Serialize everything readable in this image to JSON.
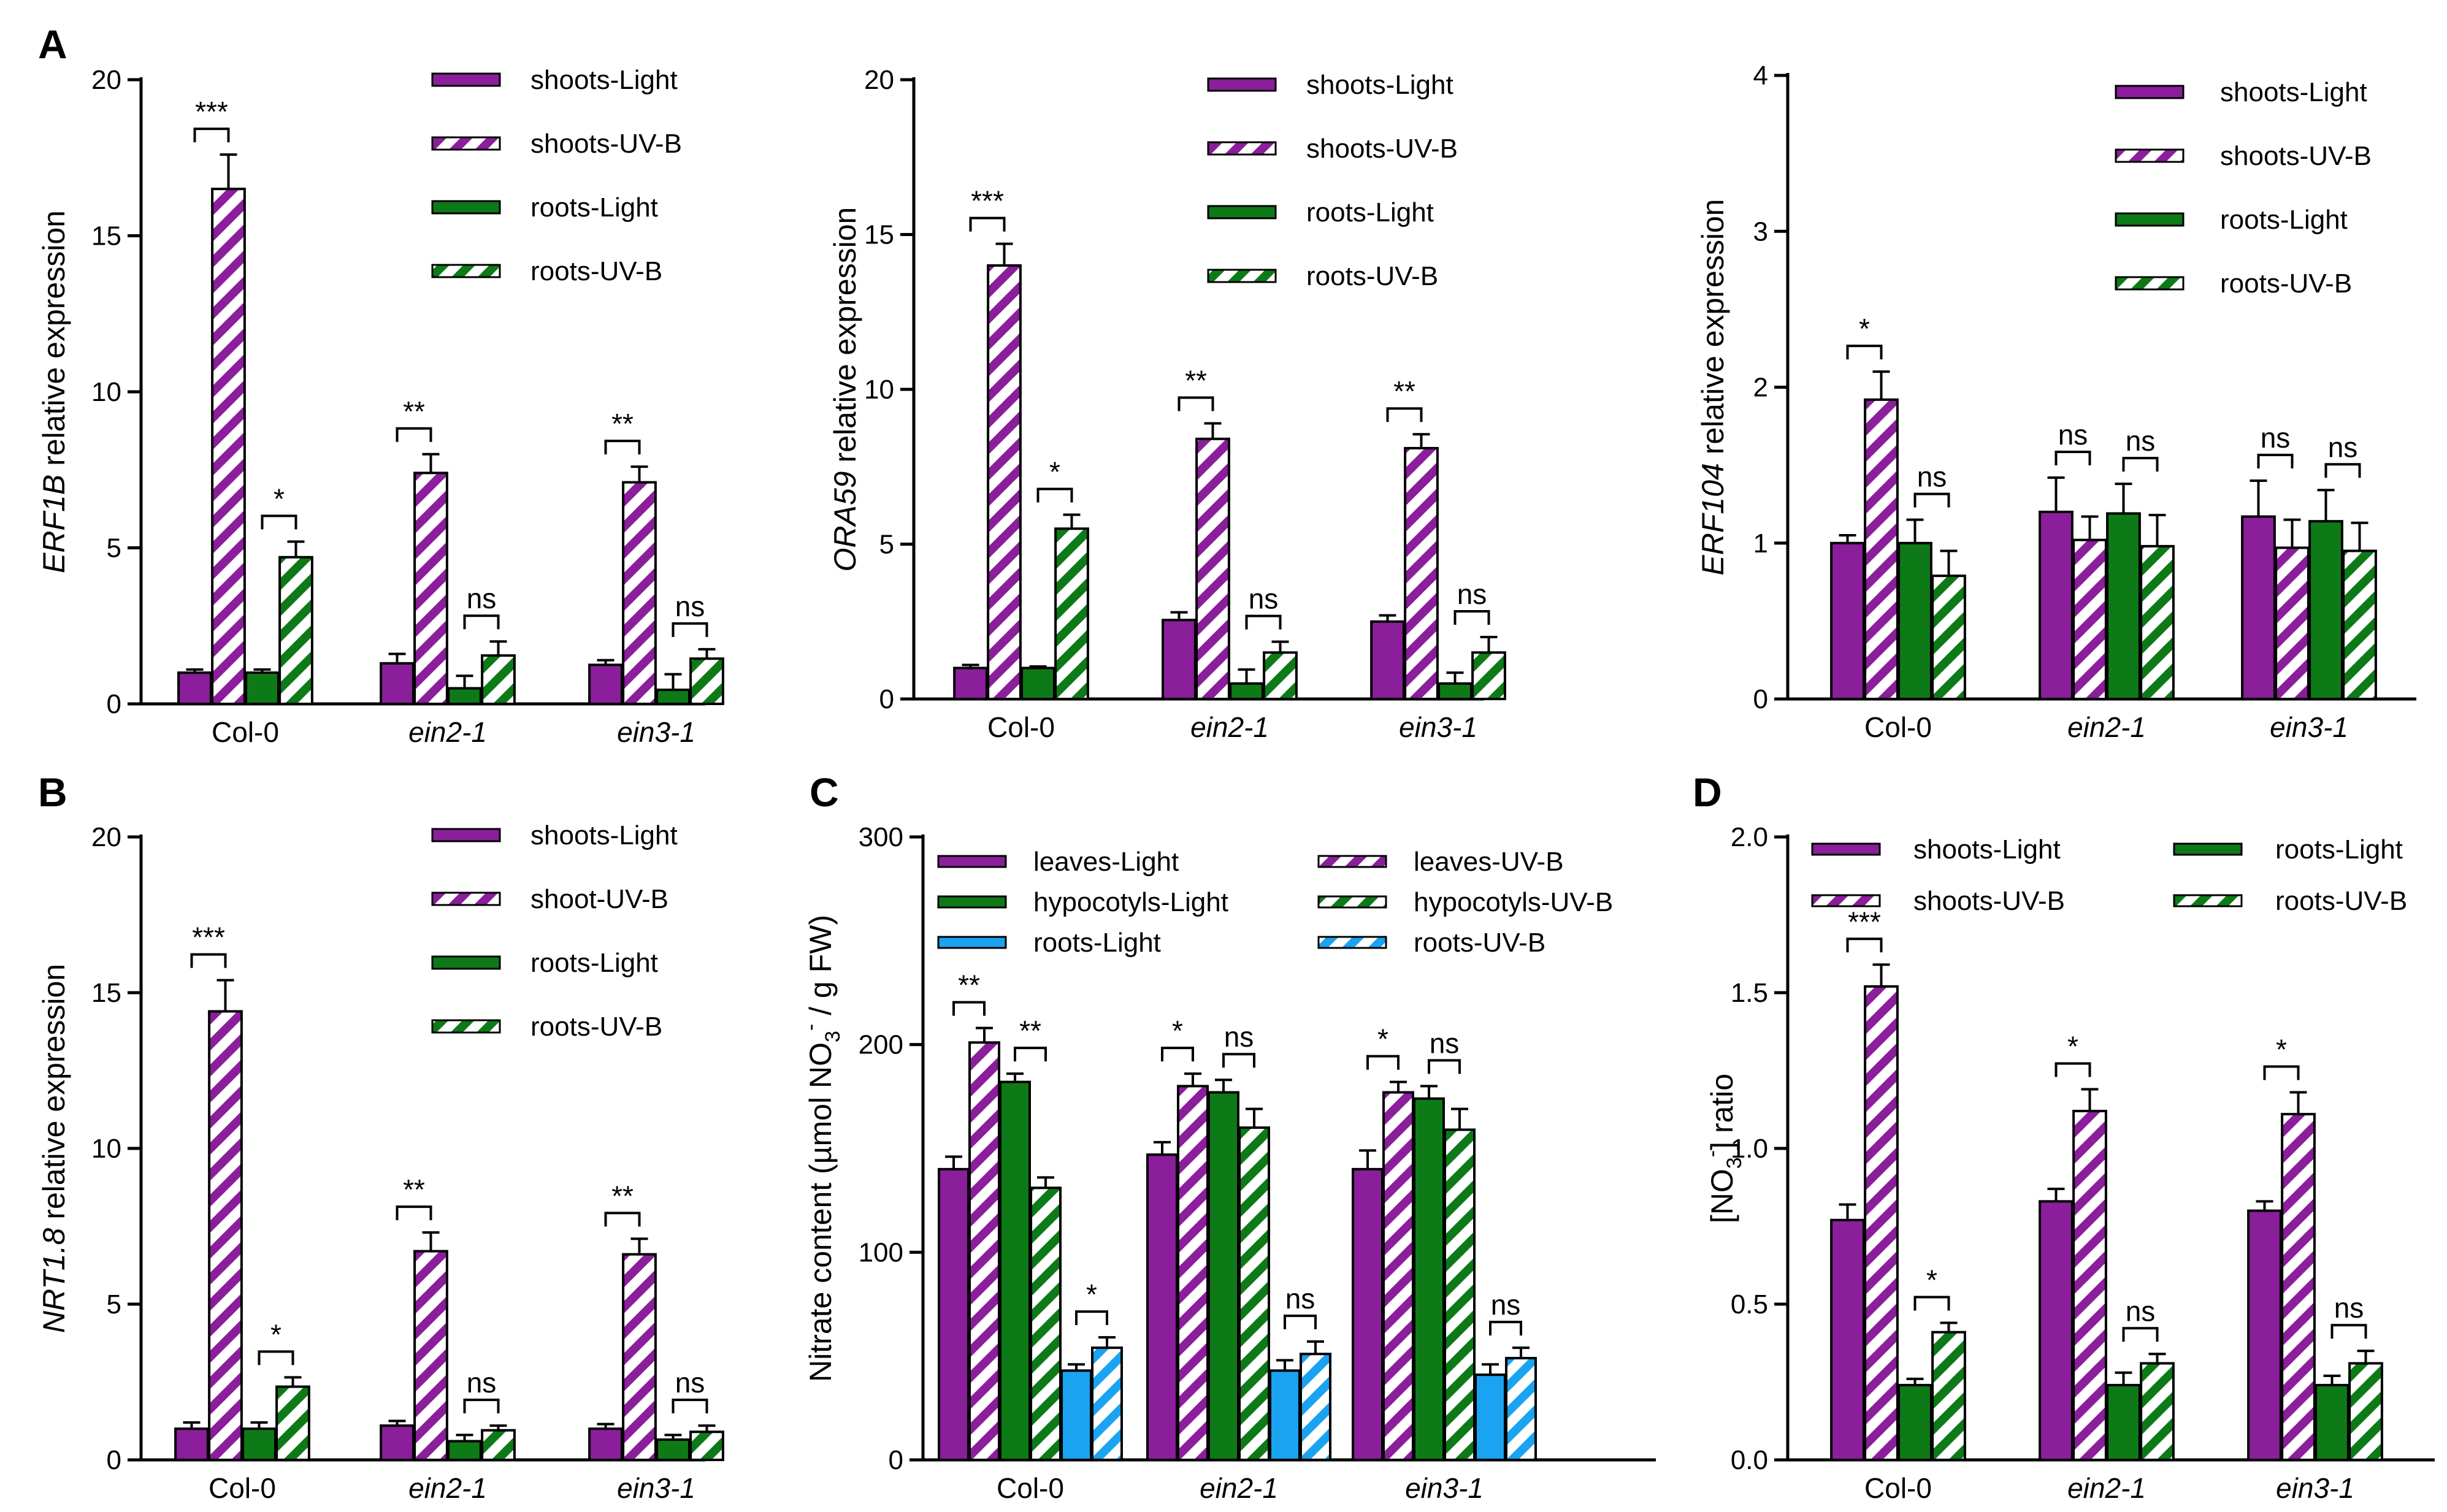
{
  "colors": {
    "purple": "#8B1E9B",
    "green": "#0D7A17",
    "blue": "#1AA3F0"
  },
  "chart_data": [
    {
      "id": "A1",
      "panel_label": "A",
      "type": "bar",
      "ylabel_italic": "ERF1B",
      "ylabel_rest": " relative expression",
      "ylim": [
        0,
        20
      ],
      "yticks": [
        "0",
        "5",
        "10",
        "15",
        "20"
      ],
      "categories": [
        {
          "label": "Col-0",
          "italic": false
        },
        {
          "label": "ein2-1",
          "italic": true
        },
        {
          "label": "ein3-1",
          "italic": true
        }
      ],
      "series": [
        {
          "name": "shoots-Light",
          "color": "purple",
          "hatch": false,
          "values": [
            1.0,
            1.3,
            1.25
          ],
          "errors": [
            0.1,
            0.3,
            0.15
          ]
        },
        {
          "name": "shoots-UV-B",
          "color": "purple",
          "hatch": true,
          "values": [
            16.5,
            7.4,
            7.1
          ],
          "errors": [
            1.1,
            0.6,
            0.5
          ]
        },
        {
          "name": "roots-Light",
          "color": "green",
          "hatch": false,
          "values": [
            1.0,
            0.5,
            0.45
          ],
          "errors": [
            0.1,
            0.4,
            0.5
          ]
        },
        {
          "name": "roots-UV-B",
          "color": "green",
          "hatch": true,
          "values": [
            4.7,
            1.55,
            1.45
          ],
          "errors": [
            0.5,
            0.45,
            0.3
          ]
        }
      ],
      "significance": [
        {
          "category": 0,
          "pair": [
            0,
            1
          ],
          "label": "***"
        },
        {
          "category": 0,
          "pair": [
            2,
            3
          ],
          "label": "*"
        },
        {
          "category": 1,
          "pair": [
            0,
            1
          ],
          "label": "**"
        },
        {
          "category": 1,
          "pair": [
            2,
            3
          ],
          "label": "ns"
        },
        {
          "category": 2,
          "pair": [
            0,
            1
          ],
          "label": "**"
        },
        {
          "category": 2,
          "pair": [
            2,
            3
          ],
          "label": "ns"
        }
      ],
      "legend": {
        "placement": "top-right",
        "columns": 1
      }
    },
    {
      "id": "A2",
      "panel_label": "",
      "type": "bar",
      "ylabel_italic": "ORA59",
      "ylabel_rest": " relative expression",
      "ylim": [
        0,
        20
      ],
      "yticks": [
        "0",
        "5",
        "10",
        "15",
        "20"
      ],
      "categories": [
        {
          "label": "Col-0",
          "italic": false
        },
        {
          "label": "ein2-1",
          "italic": true
        },
        {
          "label": "ein3-1",
          "italic": true
        }
      ],
      "series": [
        {
          "name": "shoots-Light",
          "color": "purple",
          "hatch": false,
          "values": [
            1.0,
            2.55,
            2.5
          ],
          "errors": [
            0.1,
            0.25,
            0.2
          ]
        },
        {
          "name": "shoots-UV-B",
          "color": "purple",
          "hatch": true,
          "values": [
            14.0,
            8.4,
            8.1
          ],
          "errors": [
            0.7,
            0.5,
            0.45
          ]
        },
        {
          "name": "roots-Light",
          "color": "green",
          "hatch": false,
          "values": [
            1.0,
            0.5,
            0.5
          ],
          "errors": [
            0.05,
            0.45,
            0.35
          ]
        },
        {
          "name": "roots-UV-B",
          "color": "green",
          "hatch": true,
          "values": [
            5.5,
            1.5,
            1.5
          ],
          "errors": [
            0.45,
            0.35,
            0.5
          ]
        }
      ],
      "significance": [
        {
          "category": 0,
          "pair": [
            0,
            1
          ],
          "label": "***"
        },
        {
          "category": 0,
          "pair": [
            2,
            3
          ],
          "label": "*"
        },
        {
          "category": 1,
          "pair": [
            0,
            1
          ],
          "label": "**"
        },
        {
          "category": 1,
          "pair": [
            2,
            3
          ],
          "label": "ns"
        },
        {
          "category": 2,
          "pair": [
            0,
            1
          ],
          "label": "**"
        },
        {
          "category": 2,
          "pair": [
            2,
            3
          ],
          "label": "ns"
        }
      ],
      "legend": {
        "placement": "top-right",
        "columns": 1
      }
    },
    {
      "id": "A3",
      "panel_label": "",
      "type": "bar",
      "ylabel_italic": "ERF104",
      "ylabel_rest": " relative expression",
      "ylim": [
        0,
        4
      ],
      "yticks": [
        "0",
        "1",
        "2",
        "3",
        "4"
      ],
      "categories": [
        {
          "label": "Col-0",
          "italic": false
        },
        {
          "label": "ein2-1",
          "italic": true
        },
        {
          "label": "ein3-1",
          "italic": true
        }
      ],
      "series": [
        {
          "name": "shoots-Light",
          "color": "purple",
          "hatch": false,
          "values": [
            1.0,
            1.2,
            1.17
          ],
          "errors": [
            0.05,
            0.22,
            0.23
          ]
        },
        {
          "name": "shoots-UV-B",
          "color": "purple",
          "hatch": true,
          "values": [
            1.92,
            1.02,
            0.97
          ],
          "errors": [
            0.18,
            0.15,
            0.18
          ]
        },
        {
          "name": "roots-Light",
          "color": "green",
          "hatch": false,
          "values": [
            1.0,
            1.19,
            1.14
          ],
          "errors": [
            0.15,
            0.19,
            0.2
          ]
        },
        {
          "name": "roots-UV-B",
          "color": "green",
          "hatch": true,
          "values": [
            0.79,
            0.98,
            0.95
          ],
          "errors": [
            0.16,
            0.2,
            0.18
          ]
        }
      ],
      "significance": [
        {
          "category": 0,
          "pair": [
            0,
            1
          ],
          "label": "*"
        },
        {
          "category": 0,
          "pair": [
            2,
            3
          ],
          "label": "ns"
        },
        {
          "category": 1,
          "pair": [
            0,
            1
          ],
          "label": "ns"
        },
        {
          "category": 1,
          "pair": [
            2,
            3
          ],
          "label": "ns"
        },
        {
          "category": 2,
          "pair": [
            0,
            1
          ],
          "label": "ns"
        },
        {
          "category": 2,
          "pair": [
            2,
            3
          ],
          "label": "ns"
        }
      ],
      "legend": {
        "placement": "top-right",
        "columns": 1
      }
    },
    {
      "id": "B",
      "panel_label": "B",
      "type": "bar",
      "ylabel_italic": "NRT1.8",
      "ylabel_rest": " relative expression",
      "ylim": [
        0,
        20
      ],
      "yticks": [
        "0",
        "5",
        "10",
        "15",
        "20"
      ],
      "categories": [
        {
          "label": "Col-0",
          "italic": false
        },
        {
          "label": "ein2-1",
          "italic": true
        },
        {
          "label": "ein3-1",
          "italic": true
        }
      ],
      "series": [
        {
          "name": "shoots-Light",
          "color": "purple",
          "hatch": false,
          "values": [
            1.0,
            1.1,
            1.0
          ],
          "errors": [
            0.2,
            0.15,
            0.15
          ]
        },
        {
          "name": "shoot-UV-B",
          "color": "purple",
          "hatch": true,
          "values": [
            14.4,
            6.7,
            6.6
          ],
          "errors": [
            1.0,
            0.6,
            0.5
          ]
        },
        {
          "name": "roots-Light",
          "color": "green",
          "hatch": false,
          "values": [
            1.0,
            0.6,
            0.65
          ],
          "errors": [
            0.2,
            0.2,
            0.15
          ]
        },
        {
          "name": "roots-UV-B",
          "color": "green",
          "hatch": true,
          "values": [
            2.35,
            0.95,
            0.9
          ],
          "errors": [
            0.3,
            0.15,
            0.2
          ]
        }
      ],
      "significance": [
        {
          "category": 0,
          "pair": [
            0,
            1
          ],
          "label": "***"
        },
        {
          "category": 0,
          "pair": [
            2,
            3
          ],
          "label": "*"
        },
        {
          "category": 1,
          "pair": [
            0,
            1
          ],
          "label": "**"
        },
        {
          "category": 1,
          "pair": [
            2,
            3
          ],
          "label": "ns"
        },
        {
          "category": 2,
          "pair": [
            0,
            1
          ],
          "label": "**"
        },
        {
          "category": 2,
          "pair": [
            2,
            3
          ],
          "label": "ns"
        }
      ],
      "legend": {
        "placement": "top-right",
        "columns": 1
      }
    },
    {
      "id": "C",
      "panel_label": "C",
      "type": "bar",
      "ylabel_parts": [
        "Nitrate content (µmol NO",
        "3",
        "-",
        " / g FW)"
      ],
      "ylim": [
        0,
        300
      ],
      "yticks": [
        "0",
        "100",
        "200",
        "300"
      ],
      "categories": [
        {
          "label": "Col-0",
          "italic": false
        },
        {
          "label": "ein2-1",
          "italic": true
        },
        {
          "label": "ein3-1",
          "italic": true
        }
      ],
      "series": [
        {
          "name": "leaves-Light",
          "color": "purple",
          "hatch": false,
          "values": [
            140,
            147,
            140
          ],
          "errors": [
            6,
            6,
            9
          ]
        },
        {
          "name": "leaves-UV-B",
          "color": "purple",
          "hatch": true,
          "values": [
            201,
            180,
            177
          ],
          "errors": [
            7,
            6,
            5
          ]
        },
        {
          "name": "hypocotyls-Light",
          "color": "green",
          "hatch": false,
          "values": [
            182,
            177,
            174
          ],
          "errors": [
            4,
            6,
            6
          ]
        },
        {
          "name": "hypocotyls-UV-B",
          "color": "green",
          "hatch": true,
          "values": [
            131,
            160,
            159
          ],
          "errors": [
            5,
            9,
            10
          ]
        },
        {
          "name": "roots-Light",
          "color": "blue",
          "hatch": false,
          "values": [
            43,
            43,
            41
          ],
          "errors": [
            3,
            5,
            5
          ]
        },
        {
          "name": "roots-UV-B",
          "color": "blue",
          "hatch": true,
          "values": [
            54,
            51,
            49
          ],
          "errors": [
            5,
            6,
            5
          ]
        }
      ],
      "significance": [
        {
          "category": 0,
          "pair": [
            0,
            1
          ],
          "label": "**"
        },
        {
          "category": 0,
          "pair": [
            2,
            3
          ],
          "label": "**"
        },
        {
          "category": 0,
          "pair": [
            4,
            5
          ],
          "label": "*"
        },
        {
          "category": 1,
          "pair": [
            0,
            1
          ],
          "label": "*"
        },
        {
          "category": 1,
          "pair": [
            2,
            3
          ],
          "label": "ns"
        },
        {
          "category": 1,
          "pair": [
            4,
            5
          ],
          "label": "ns"
        },
        {
          "category": 2,
          "pair": [
            0,
            1
          ],
          "label": "*"
        },
        {
          "category": 2,
          "pair": [
            2,
            3
          ],
          "label": "ns"
        },
        {
          "category": 2,
          "pair": [
            4,
            5
          ],
          "label": "ns"
        }
      ],
      "legend": {
        "placement": "top",
        "columns": 2,
        "order": [
          0,
          2,
          4,
          1,
          3,
          5
        ]
      }
    },
    {
      "id": "D",
      "panel_label": "D",
      "type": "bar",
      "ylabel_parts": [
        "[NO",
        "3",
        "-",
        "] ratio"
      ],
      "ylim": [
        0,
        2.0
      ],
      "yticks": [
        "0.0",
        "0.5",
        "1.0",
        "1.5",
        "2.0"
      ],
      "categories": [
        {
          "label": "Col-0",
          "italic": false
        },
        {
          "label": "ein2-1",
          "italic": true
        },
        {
          "label": "ein3-1",
          "italic": true
        }
      ],
      "series": [
        {
          "name": "shoots-Light",
          "color": "purple",
          "hatch": false,
          "values": [
            0.77,
            0.83,
            0.8
          ],
          "errors": [
            0.05,
            0.04,
            0.03
          ]
        },
        {
          "name": "shoots-UV-B",
          "color": "purple",
          "hatch": true,
          "values": [
            1.52,
            1.12,
            1.11
          ],
          "errors": [
            0.07,
            0.07,
            0.07
          ]
        },
        {
          "name": "roots-Light",
          "color": "green",
          "hatch": false,
          "values": [
            0.24,
            0.24,
            0.24
          ],
          "errors": [
            0.02,
            0.04,
            0.03
          ]
        },
        {
          "name": "roots-UV-B",
          "color": "green",
          "hatch": true,
          "values": [
            0.41,
            0.31,
            0.31
          ],
          "errors": [
            0.03,
            0.03,
            0.04
          ]
        }
      ],
      "significance": [
        {
          "category": 0,
          "pair": [
            0,
            1
          ],
          "label": "***"
        },
        {
          "category": 0,
          "pair": [
            2,
            3
          ],
          "label": "*"
        },
        {
          "category": 1,
          "pair": [
            0,
            1
          ],
          "label": "*"
        },
        {
          "category": 1,
          "pair": [
            2,
            3
          ],
          "label": "ns"
        },
        {
          "category": 2,
          "pair": [
            0,
            1
          ],
          "label": "*"
        },
        {
          "category": 2,
          "pair": [
            2,
            3
          ],
          "label": "ns"
        }
      ],
      "legend": {
        "placement": "top",
        "columns": 2,
        "order": [
          0,
          1,
          2,
          3
        ]
      }
    }
  ]
}
